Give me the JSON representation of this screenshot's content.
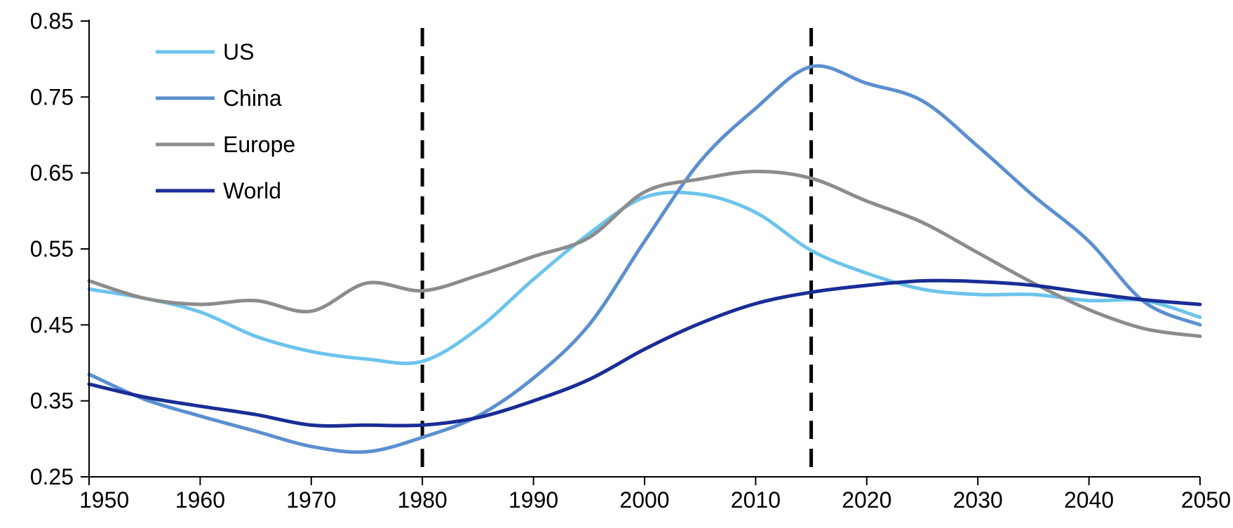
{
  "chart_data": {
    "type": "line",
    "title": "",
    "xlabel": "",
    "ylabel": "",
    "xlim": [
      1950,
      2050
    ],
    "ylim": [
      0.25,
      0.85
    ],
    "x_ticks": [
      "1950",
      "1960",
      "1970",
      "1980",
      "1990",
      "2000",
      "2010",
      "2020",
      "2030",
      "2040",
      "2050"
    ],
    "y_ticks": [
      "0.25",
      "0.35",
      "0.45",
      "0.55",
      "0.65",
      "0.75",
      "0.85"
    ],
    "grid": false,
    "legend_position": "top-left",
    "vertical_markers": [
      1980,
      2015
    ],
    "x": [
      1950,
      1955,
      1960,
      1965,
      1970,
      1975,
      1980,
      1985,
      1990,
      1995,
      2000,
      2005,
      2010,
      2015,
      2020,
      2025,
      2030,
      2035,
      2040,
      2045,
      2050
    ],
    "series": [
      {
        "name": "US",
        "color": "#6cc4ec",
        "values": [
          0.497,
          0.485,
          0.467,
          0.435,
          0.415,
          0.405,
          0.402,
          0.445,
          0.51,
          0.57,
          0.618,
          0.622,
          0.598,
          0.548,
          0.518,
          0.497,
          0.49,
          0.49,
          0.482,
          0.482,
          0.46
        ]
      },
      {
        "name": "China",
        "color": "#5b8fd0",
        "values": [
          0.385,
          0.352,
          0.33,
          0.31,
          0.29,
          0.283,
          0.302,
          0.33,
          0.38,
          0.45,
          0.56,
          0.665,
          0.735,
          0.79,
          0.768,
          0.745,
          0.685,
          0.62,
          0.56,
          0.48,
          0.45
        ]
      },
      {
        "name": "Europe",
        "color": "#8c8c8c",
        "values": [
          0.508,
          0.485,
          0.477,
          0.482,
          0.468,
          0.505,
          0.495,
          0.515,
          0.54,
          0.565,
          0.625,
          0.642,
          0.652,
          0.643,
          0.613,
          0.585,
          0.545,
          0.505,
          0.47,
          0.445,
          0.435
        ]
      },
      {
        "name": "World",
        "color": "#1a2d96",
        "values": [
          0.372,
          0.355,
          0.343,
          0.332,
          0.318,
          0.318,
          0.318,
          0.328,
          0.35,
          0.378,
          0.418,
          0.452,
          0.478,
          0.493,
          0.502,
          0.508,
          0.507,
          0.502,
          0.492,
          0.483,
          0.477
        ]
      }
    ]
  }
}
